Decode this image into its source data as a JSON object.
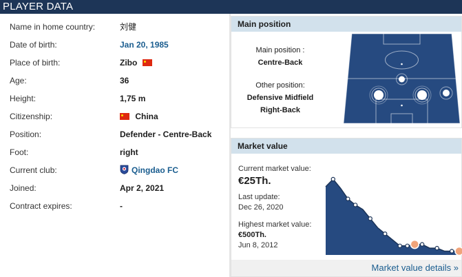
{
  "header": {
    "title": "PLAYER DATA"
  },
  "player": {
    "rows": [
      {
        "label": "Name in home country:",
        "value": "刘健"
      },
      {
        "label": "Date of birth:",
        "value": "Jan 20, 1985"
      },
      {
        "label": "Place of birth:",
        "value": "Zibo"
      },
      {
        "label": "Age:",
        "value": "36"
      },
      {
        "label": "Height:",
        "value": "1,75 m"
      },
      {
        "label": "Citizenship:",
        "value": "China"
      },
      {
        "label": "Position:",
        "value": "Defender - Centre-Back"
      },
      {
        "label": "Foot:",
        "value": "right"
      },
      {
        "label": "Current club:",
        "value": "Qingdao FC"
      },
      {
        "label": "Joined:",
        "value": "Apr 2, 2021"
      },
      {
        "label": "Contract expires:",
        "value": "-"
      }
    ]
  },
  "position": {
    "title": "Main position",
    "main_label": "Main position :",
    "main_value": "Centre-Back",
    "other_label": "Other position:",
    "other_values": [
      "Defensive Midfield",
      "Right-Back"
    ]
  },
  "market": {
    "title": "Market value",
    "current_label": "Current market value:",
    "current_value": "€25Th.",
    "update_label": "Last update:",
    "update_value": "Dec 26, 2020",
    "highest_label": "Highest market value:",
    "highest_value": "€500Th.",
    "highest_date": "Jun 8, 2012",
    "details_link": "Market value details »",
    "chart_values": [
      450,
      500,
      440,
      370,
      330,
      300,
      240,
      180,
      140,
      100,
      60,
      60,
      70,
      70,
      45,
      45,
      25,
      25,
      25
    ]
  },
  "colors": {
    "header": "#1d3557",
    "pitch": "#264a80",
    "link": "#1a5d8f",
    "transfer_marker": "#f0a47a"
  },
  "icons": {
    "flag": "china-flag-icon",
    "club": "qingdao-fc-crest-icon"
  }
}
